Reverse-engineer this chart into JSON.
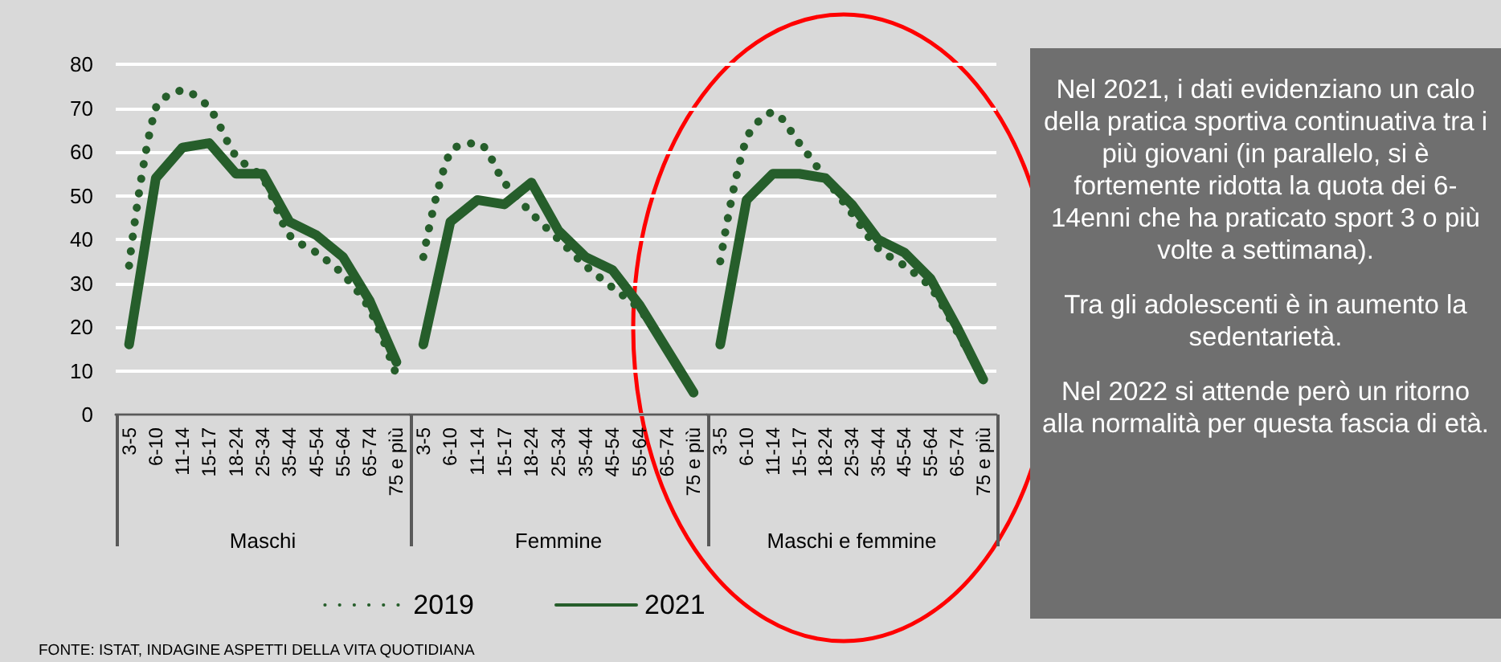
{
  "chart_data": [
    {
      "type": "line",
      "xlabel": "Maschi",
      "categories": [
        "3-5",
        "6-10",
        "11-14",
        "15-17",
        "18-24",
        "25-34",
        "35-44",
        "45-54",
        "55-64",
        "65-74",
        "75 e più"
      ],
      "ylim": [
        0,
        80
      ],
      "yticks": [
        0,
        10,
        20,
        30,
        40,
        50,
        60,
        70,
        80
      ],
      "grid": "y",
      "marker": "none",
      "annotations": [
        "FONTE: ISTAT, INDAGINE ASPETTI DELLA VITA QUOTIDIANA"
      ],
      "series": [
        {
          "color": "#265e2b",
          "line_style": "dotted",
          "values": [
            34,
            70,
            74,
            70,
            59,
            54,
            41,
            37,
            32,
            24,
            9
          ]
        },
        {
          "color": "#265e2b",
          "line_style": "solid",
          "values": [
            16,
            54,
            61,
            62,
            55,
            55,
            44,
            41,
            36,
            26,
            12
          ]
        }
      ]
    },
    {
      "type": "line",
      "xlabel": "Femmine",
      "categories": [
        "3-5",
        "6-10",
        "11-14",
        "15-17",
        "18-24",
        "25-34",
        "35-44",
        "45-54",
        "55-64",
        "65-74",
        "75 e più"
      ],
      "ylim": [
        0,
        80
      ],
      "yticks": [
        0,
        10,
        20,
        30,
        40,
        50,
        60,
        70,
        80
      ],
      "grid": "y",
      "marker": "none",
      "tick_labels": "x",
      "legend": "bottom",
      "series": [
        {
          "name": "2019",
          "color": "#265e2b",
          "line_style": "dotted",
          "values": [
            36,
            60,
            62,
            53,
            46,
            40,
            34,
            29,
            24,
            15,
            5
          ]
        },
        {
          "name": "2021",
          "color": "#265e2b",
          "line_style": "solid",
          "values": [
            16,
            44,
            49,
            48,
            53,
            42,
            36,
            33,
            25,
            15,
            5
          ]
        }
      ]
    },
    {
      "type": "line",
      "xlabel": "Maschi e femmine",
      "categories": [
        "3-5",
        "6-10",
        "11-14",
        "15-17",
        "18-24",
        "25-34",
        "35-44",
        "45-54",
        "55-64",
        "65-74",
        "75 e più"
      ],
      "ylim": [
        0,
        80
      ],
      "yticks": [
        0,
        10,
        20,
        30,
        40,
        50,
        60,
        70,
        80
      ],
      "grid": "y",
      "marker": "none",
      "tick_labels": "x",
      "series": [
        {
          "color": "#265e2b",
          "line_style": "dotted",
          "values": [
            35,
            63,
            69,
            62,
            54,
            46,
            38,
            34,
            29,
            19,
            8
          ]
        },
        {
          "color": "#265e2b",
          "line_style": "solid",
          "values": [
            16,
            49,
            55,
            55,
            54,
            48,
            40,
            37,
            31,
            20,
            8
          ]
        }
      ]
    },
    {
      "type": "other",
      "annotations": [
        "Nel 2021, i dati evidenziano un calo della pratica sportiva continuativa tra i più giovani (in parallelo, si è fortemente ridotta la quota dei 6-14enni che ha praticato sport 3 o più volte a settimana).",
        "Tra gli adolescenti è in aumento la sedentarietà.",
        "Nel 2022 si attende però un ritorno alla normalità per questa fascia di età."
      ]
    }
  ]
}
